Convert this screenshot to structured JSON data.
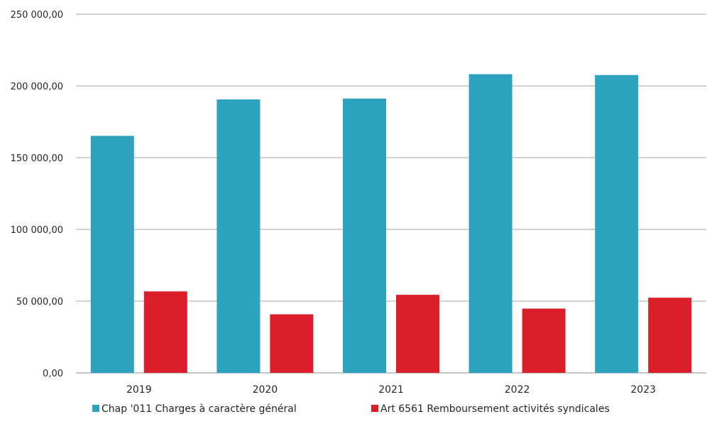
{
  "chart_data": {
    "type": "bar",
    "categories": [
      "2019",
      "2020",
      "2021",
      "2022",
      "2023"
    ],
    "series": [
      {
        "name": "Chap '011 Charges à caractère général",
        "color": "#2ea3bf",
        "values": [
          165200,
          190600,
          191200,
          208200,
          207600
        ]
      },
      {
        "name": "Art 6561 Remboursement activités syndicales",
        "color": "#db1f2a",
        "values": [
          56800,
          40800,
          54400,
          44800,
          52400
        ]
      }
    ],
    "y_ticks": [
      "0,00",
      "50 000,00",
      "100 000,00",
      "150 000,00",
      "200 000,00",
      "250 000,00"
    ],
    "ylim": [
      0,
      250000
    ],
    "grid": true,
    "legend_position": "bottom"
  }
}
